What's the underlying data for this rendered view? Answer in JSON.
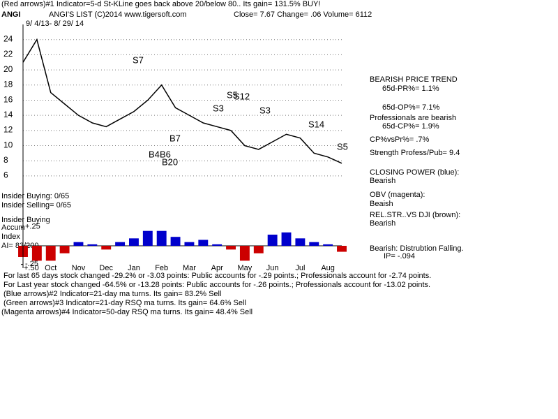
{
  "header": {
    "indicator": "(Red arrows)#1 Indicator=5-d St-KLine goes back above 20/below 80.. Its gain= 131.5% BUY!",
    "ticker": "ANGI",
    "name": "ANGI'S LIST   (C)2014 www.tigersoft.com",
    "quote": "Close=  7.67  Change= .06 Volume= 6112",
    "dates": "9/ 4/13- 8/ 29/ 14"
  },
  "annotations": [
    "S7",
    "S5",
    "S12",
    "S3",
    "S3",
    "S14",
    "S5",
    "B7",
    "B4",
    "B6",
    "B20"
  ],
  "left_labels": [
    "Insider Buying: 0/65",
    "Insider Selling= 0/65",
    "Insider Buying",
    "Accum",
    "Index",
    "AI= 83/200",
    "+.50"
  ],
  "right_panel": [
    "BEARISH PRICE TREND",
    "65d-PR%= 1.1%",
    "65d-OP%= 7.1%",
    "Professionals are bearish",
    "65d-CP%= 1.9%",
    "CP%vsPr%=  .7%",
    "Strength Profess/Pub= 9.4",
    "CLOSING POWER (blue):",
    "Bearish",
    "OBV (magenta):",
    "Beaish",
    "REL.STR..VS DJI (brown):",
    "Bearish",
    "Bearish:  Distrubtion Falling.",
    "IP= -.094"
  ],
  "footer": [
    "For last 65 days stock changed -29.2% or -3.03 points:  Public accounts for -.29 points.;  Professionals account for -2.74 points.",
    "For Last year stock changed -64.5% or -13.28 points:  Public accounts for -.26 points.;  Professionals account for -13.02 points.",
    "(Blue arrows)#2 Indicator=21-day ma turns. Its gain= 83.2% Sell",
    "(Green arrows)#3 Indicator=21-day RSQ ma turns. Its gain= 64.6% Sell",
    "(Magenta arrows)#4 Indicator=50-day RSQ ma turns. Its gain= 48.4% Sell"
  ],
  "chart_data": [
    {
      "type": "line",
      "categories": [
        null,
        null,
        "Oct",
        null,
        "Nov",
        null,
        "Dec",
        null,
        "Jan",
        null,
        "Feb",
        null,
        "Mar",
        null,
        "Apr",
        null,
        "May",
        null,
        "Jun",
        null,
        "Jul",
        null,
        "Aug",
        null
      ],
      "series": [
        {
          "name": "ANGI",
          "color": "#000000",
          "values": [
            21,
            24,
            17,
            15.5,
            14,
            13,
            12.5,
            13.5,
            14.5,
            16,
            18,
            15,
            14,
            13,
            12.5,
            12,
            10,
            9.5,
            10.5,
            11.5,
            11,
            9,
            8.5,
            7.67
          ]
        }
      ],
      "ylim": [
        0,
        26
      ],
      "yticks": [
        6,
        8,
        10,
        12,
        14,
        16,
        18,
        20,
        22,
        24
      ],
      "grid": true
    },
    {
      "type": "bar",
      "values": [
        -0.15,
        -0.2,
        -0.2,
        -0.1,
        0.05,
        0.02,
        -0.05,
        0.05,
        0.1,
        0.2,
        0.2,
        0.12,
        0.05,
        0.08,
        0.02,
        -0.05,
        -0.2,
        -0.1,
        0.15,
        0.18,
        0.1,
        0.05,
        0.02,
        -0.08
      ],
      "colors": {
        "positive": "#0000cc",
        "negative": "#cc0000"
      },
      "ylim": [
        -0.3,
        0.3
      ],
      "yticks": [
        {
          "value": 0.25,
          "label": "+.25"
        },
        {
          "value": -0.25,
          "label": "-.25"
        }
      ]
    }
  ]
}
